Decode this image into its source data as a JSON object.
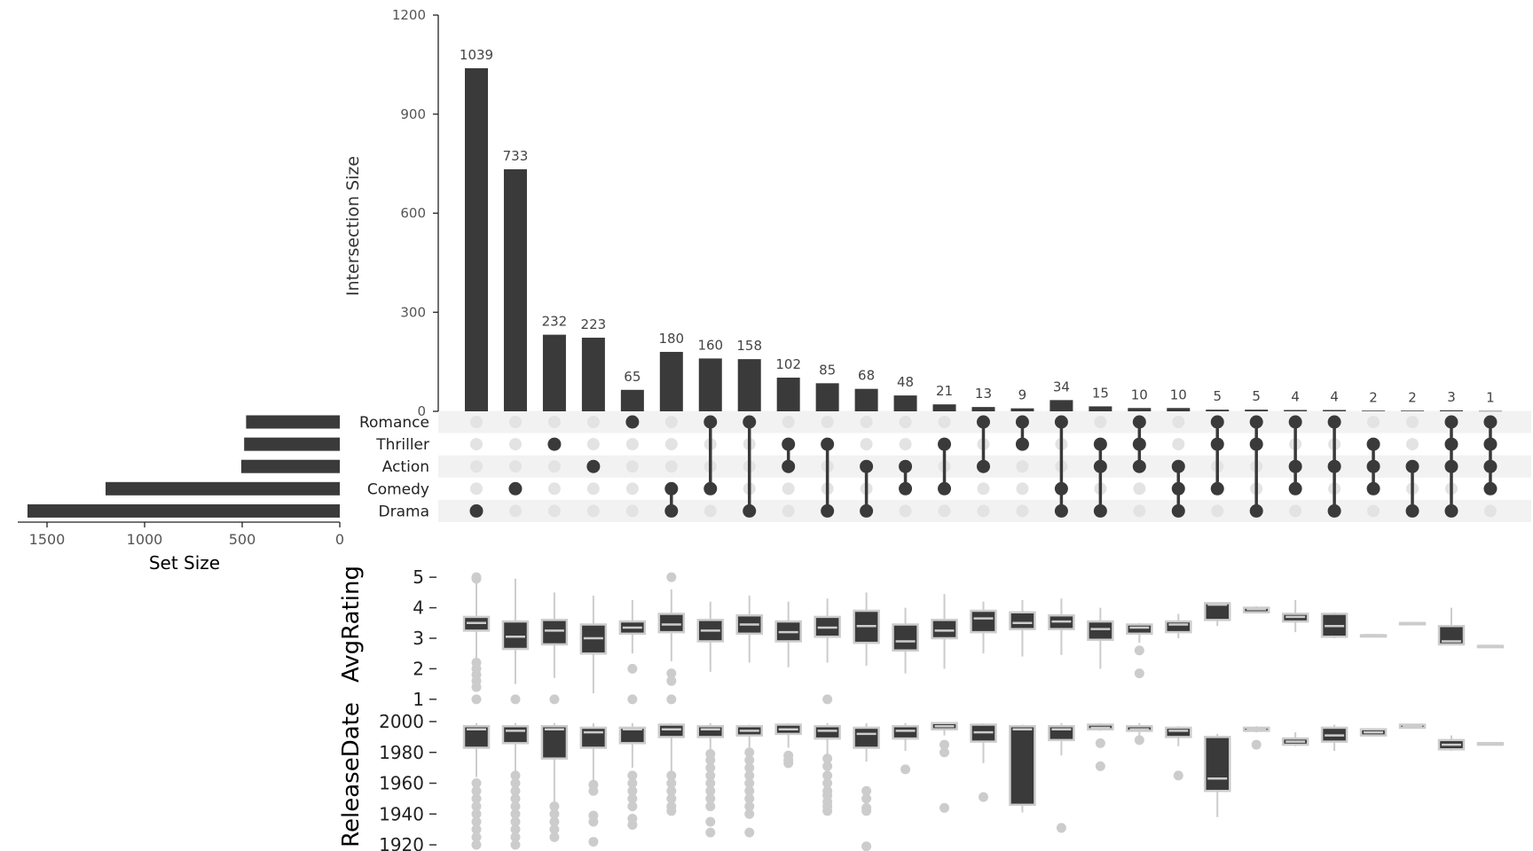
{
  "chart_data": {
    "type": "upset",
    "intersection_axis": {
      "label": "Intersection Size",
      "ticks": [
        0,
        300,
        600,
        900,
        1200
      ],
      "ylim": [
        0,
        1200
      ]
    },
    "set_size_axis": {
      "label": "Set Size",
      "ticks": [
        1500,
        1000,
        500,
        0
      ],
      "xlim": [
        0,
        1650
      ]
    },
    "sets": [
      {
        "name": "Romance",
        "size": 480
      },
      {
        "name": "Thriller",
        "size": 490
      },
      {
        "name": "Action",
        "size": 505
      },
      {
        "name": "Comedy",
        "size": 1200
      },
      {
        "name": "Drama",
        "size": 1600
      }
    ],
    "intersections": [
      {
        "size": 1039,
        "label": "1039",
        "sets": [
          "Drama"
        ]
      },
      {
        "size": 733,
        "label": "733",
        "sets": [
          "Comedy"
        ]
      },
      {
        "size": 232,
        "label": "232",
        "sets": [
          "Thriller"
        ]
      },
      {
        "size": 223,
        "label": "223",
        "sets": [
          "Action"
        ]
      },
      {
        "size": 65,
        "label": "65",
        "sets": [
          "Romance"
        ]
      },
      {
        "size": 180,
        "label": "180",
        "sets": [
          "Comedy",
          "Drama"
        ]
      },
      {
        "size": 160,
        "label": "160",
        "sets": [
          "Romance",
          "Comedy"
        ]
      },
      {
        "size": 158,
        "label": "158",
        "sets": [
          "Romance",
          "Drama"
        ]
      },
      {
        "size": 102,
        "label": "102",
        "sets": [
          "Thriller",
          "Action"
        ]
      },
      {
        "size": 85,
        "label": "85",
        "sets": [
          "Thriller",
          "Drama"
        ]
      },
      {
        "size": 68,
        "label": "68",
        "sets": [
          "Action",
          "Drama"
        ]
      },
      {
        "size": 48,
        "label": "48",
        "sets": [
          "Action",
          "Comedy"
        ]
      },
      {
        "size": 21,
        "label": "21",
        "sets": [
          "Thriller",
          "Comedy"
        ]
      },
      {
        "size": 13,
        "label": "13",
        "sets": [
          "Romance",
          "Action"
        ]
      },
      {
        "size": 9,
        "label": "9",
        "sets": [
          "Romance",
          "Thriller"
        ]
      },
      {
        "size": 34,
        "label": "34",
        "sets": [
          "Romance",
          "Comedy",
          "Drama"
        ]
      },
      {
        "size": 15,
        "label": "15",
        "sets": [
          "Thriller",
          "Action",
          "Drama"
        ]
      },
      {
        "size": 10,
        "label": "10",
        "sets": [
          "Romance",
          "Thriller",
          "Action"
        ]
      },
      {
        "size": 10,
        "label": "10",
        "sets": [
          "Action",
          "Comedy",
          "Drama"
        ]
      },
      {
        "size": 5,
        "label": "5",
        "sets": [
          "Romance",
          "Thriller",
          "Comedy"
        ]
      },
      {
        "size": 5,
        "label": "5",
        "sets": [
          "Romance",
          "Thriller",
          "Drama"
        ]
      },
      {
        "size": 4,
        "label": "4",
        "sets": [
          "Romance",
          "Action",
          "Comedy"
        ]
      },
      {
        "size": 4,
        "label": "4",
        "sets": [
          "Romance",
          "Action",
          "Drama"
        ]
      },
      {
        "size": 2,
        "label": "2",
        "sets": [
          "Thriller",
          "Action",
          "Comedy"
        ]
      },
      {
        "size": 2,
        "label": "2",
        "sets": [
          "Action",
          "Drama"
        ]
      },
      {
        "size": 3,
        "label": "3",
        "sets": [
          "Romance",
          "Thriller",
          "Action",
          "Drama"
        ]
      },
      {
        "size": 1,
        "label": "1",
        "sets": [
          "Romance",
          "Thriller",
          "Action",
          "Comedy"
        ]
      }
    ],
    "boxplots": [
      {
        "variable": "AvgRating",
        "ticks": [
          1,
          2,
          3,
          4,
          5
        ],
        "ylim": [
          0.85,
          5.15
        ],
        "stats": [
          {
            "wlo": 2.35,
            "q1": 3.25,
            "med": 3.5,
            "q3": 3.7,
            "whi": 4.9,
            "out": [
              1,
              1.4,
              1.6,
              1.8,
              2,
              2.2,
              4.95,
              5
            ]
          },
          {
            "wlo": 1.5,
            "q1": 2.65,
            "med": 3.05,
            "q3": 3.55,
            "whi": 4.95,
            "out": [
              1
            ]
          },
          {
            "wlo": 1.7,
            "q1": 2.8,
            "med": 3.25,
            "q3": 3.6,
            "whi": 4.5,
            "out": [
              1
            ]
          },
          {
            "wlo": 1.2,
            "q1": 2.5,
            "med": 3,
            "q3": 3.45,
            "whi": 4.4,
            "out": []
          },
          {
            "wlo": 2.5,
            "q1": 3.15,
            "med": 3.35,
            "q3": 3.55,
            "whi": 4.25,
            "out": [
              1,
              2
            ]
          },
          {
            "wlo": 2.25,
            "q1": 3.2,
            "med": 3.45,
            "q3": 3.8,
            "whi": 4.6,
            "out": [
              1,
              1.6,
              1.85,
              5
            ]
          },
          {
            "wlo": 1.9,
            "q1": 2.9,
            "med": 3.25,
            "q3": 3.6,
            "whi": 4.2,
            "out": []
          },
          {
            "wlo": 2.2,
            "q1": 3.15,
            "med": 3.45,
            "q3": 3.75,
            "whi": 4.4,
            "out": []
          },
          {
            "wlo": 2.05,
            "q1": 2.9,
            "med": 3.2,
            "q3": 3.55,
            "whi": 4.2,
            "out": []
          },
          {
            "wlo": 2.2,
            "q1": 3.05,
            "med": 3.35,
            "q3": 3.7,
            "whi": 4.3,
            "out": [
              1
            ]
          },
          {
            "wlo": 2.1,
            "q1": 2.85,
            "med": 3.4,
            "q3": 3.9,
            "whi": 4.5,
            "out": []
          },
          {
            "wlo": 1.85,
            "q1": 2.6,
            "med": 2.9,
            "q3": 3.45,
            "whi": 4,
            "out": []
          },
          {
            "wlo": 2,
            "q1": 3,
            "med": 3.25,
            "q3": 3.6,
            "whi": 4.45,
            "out": []
          },
          {
            "wlo": 2.5,
            "q1": 3.2,
            "med": 3.65,
            "q3": 3.9,
            "whi": 4.2,
            "out": []
          },
          {
            "wlo": 2.4,
            "q1": 3.3,
            "med": 3.5,
            "q3": 3.85,
            "whi": 4.25,
            "out": []
          },
          {
            "wlo": 2.45,
            "q1": 3.3,
            "med": 3.55,
            "q3": 3.75,
            "whi": 4.3,
            "out": []
          },
          {
            "wlo": 2,
            "q1": 2.95,
            "med": 3.3,
            "q3": 3.55,
            "whi": 4,
            "out": []
          },
          {
            "wlo": 2.85,
            "q1": 3.15,
            "med": 3.35,
            "q3": 3.45,
            "whi": 3.5,
            "out": [
              1.85,
              2.6
            ]
          },
          {
            "wlo": 3,
            "q1": 3.2,
            "med": 3.45,
            "q3": 3.55,
            "whi": 3.8,
            "out": []
          },
          {
            "wlo": 3.4,
            "q1": 3.6,
            "med": 4.1,
            "q3": 4.15,
            "whi": 4.15,
            "out": []
          },
          {
            "wlo": 3.85,
            "q1": 3.85,
            "med": 3.95,
            "q3": 4,
            "whi": 4.05,
            "out": []
          },
          {
            "wlo": 3.2,
            "q1": 3.55,
            "med": 3.7,
            "q3": 3.8,
            "whi": 4.25,
            "out": []
          },
          {
            "wlo": 3,
            "q1": 3.05,
            "med": 3.4,
            "q3": 3.8,
            "whi": 3.85,
            "out": []
          },
          {
            "wlo": 3.1,
            "q1": 3.1,
            "med": 3.1,
            "q3": 3.1,
            "whi": 3.1,
            "out": []
          },
          {
            "wlo": 3.5,
            "q1": 3.5,
            "med": 3.5,
            "q3": 3.5,
            "whi": 3.5,
            "out": []
          },
          {
            "wlo": 2.8,
            "q1": 2.8,
            "med": 2.9,
            "q3": 3.4,
            "whi": 4,
            "out": []
          },
          {
            "wlo": 2.75,
            "q1": 2.75,
            "med": 2.75,
            "q3": 2.75,
            "whi": 2.75,
            "out": []
          }
        ]
      },
      {
        "variable": "ReleaseDate",
        "ticks": [
          1920,
          1940,
          1960,
          1980,
          2000
        ],
        "ylim": [
          1916,
          2000
        ],
        "stats": [
          {
            "wlo": 1964,
            "q1": 1983,
            "med": 1995,
            "q3": 1997,
            "whi": 1999,
            "out": [
              1920,
              1925,
              1930,
              1935,
              1940,
              1945,
              1950,
              1955,
              1960
            ]
          },
          {
            "wlo": 1966,
            "q1": 1986,
            "med": 1994,
            "q3": 1997,
            "whi": 1999,
            "out": [
              1920,
              1925,
              1930,
              1935,
              1940,
              1945,
              1950,
              1955,
              1960,
              1965
            ]
          },
          {
            "wlo": 1946,
            "q1": 1976,
            "med": 1995,
            "q3": 1997,
            "whi": 1999,
            "out": [
              1925,
              1930,
              1935,
              1940,
              1945
            ]
          },
          {
            "wlo": 1962,
            "q1": 1983,
            "med": 1993,
            "q3": 1996,
            "whi": 1999,
            "out": [
              1922,
              1935,
              1939,
              1955,
              1959
            ]
          },
          {
            "wlo": 1970,
            "q1": 1986,
            "med": 1995,
            "q3": 1996,
            "whi": 1999,
            "out": [
              1933,
              1937,
              1945,
              1950,
              1955,
              1960,
              1965
            ]
          },
          {
            "wlo": 1968,
            "q1": 1990,
            "med": 1995,
            "q3": 1998,
            "whi": 1999,
            "out": [
              1942,
              1945,
              1950,
              1955,
              1960,
              1965
            ]
          },
          {
            "wlo": 1981,
            "q1": 1990,
            "med": 1995,
            "q3": 1997,
            "whi": 1999,
            "out": [
              1928,
              1935,
              1945,
              1950,
              1955,
              1960,
              1965,
              1970,
              1975,
              1979
            ]
          },
          {
            "wlo": 1982,
            "q1": 1991,
            "med": 1994,
            "q3": 1997,
            "whi": 1998,
            "out": [
              1928,
              1940,
              1945,
              1950,
              1955,
              1960,
              1965,
              1970,
              1975,
              1980
            ]
          },
          {
            "wlo": 1983,
            "q1": 1992,
            "med": 1995,
            "q3": 1998,
            "whi": 1999,
            "out": [
              1973,
              1975,
              1978
            ]
          },
          {
            "wlo": 1978,
            "q1": 1989,
            "med": 1994,
            "q3": 1997,
            "whi": 1999,
            "out": [
              1942,
              1945,
              1948,
              1952,
              1955,
              1960,
              1965,
              1971,
              1976
            ]
          },
          {
            "wlo": 1974,
            "q1": 1983,
            "med": 1992,
            "q3": 1996,
            "whi": 1999,
            "out": [
              1919,
              1942,
              1944,
              1950,
              1955
            ]
          },
          {
            "wlo": 1981,
            "q1": 1989,
            "med": 1994,
            "q3": 1997,
            "whi": 1999,
            "out": [
              1969
            ]
          },
          {
            "wlo": 1991,
            "q1": 1995,
            "med": 1997,
            "q3": 1999,
            "whi": 1999,
            "out": [
              1944,
              1980,
              1985
            ]
          },
          {
            "wlo": 1973,
            "q1": 1987,
            "med": 1993,
            "q3": 1998,
            "whi": 1999,
            "out": [
              1951
            ]
          },
          {
            "wlo": 1941,
            "q1": 1946,
            "med": 1995,
            "q3": 1997,
            "whi": 1998,
            "out": []
          },
          {
            "wlo": 1978,
            "q1": 1988,
            "med": 1995,
            "q3": 1997,
            "whi": 1999,
            "out": [
              1931
            ]
          },
          {
            "wlo": 1994,
            "q1": 1995,
            "med": 1996,
            "q3": 1998,
            "whi": 1999,
            "out": [
              1971,
              1986
            ]
          },
          {
            "wlo": 1991,
            "q1": 1994,
            "med": 1995,
            "q3": 1997,
            "whi": 1999,
            "out": [
              1988
            ]
          },
          {
            "wlo": 1984,
            "q1": 1990,
            "med": 1994,
            "q3": 1996,
            "whi": 1997,
            "out": [
              1965
            ]
          },
          {
            "wlo": 1938,
            "q1": 1955,
            "med": 1963,
            "q3": 1990,
            "whi": 1992,
            "out": []
          },
          {
            "wlo": 1993,
            "q1": 1994,
            "med": 1995,
            "q3": 1996,
            "whi": 1997,
            "out": [
              1985
            ]
          },
          {
            "wlo": 1984,
            "q1": 1985,
            "med": 1987,
            "q3": 1989,
            "whi": 1993,
            "out": []
          },
          {
            "wlo": 1981,
            "q1": 1987,
            "med": 1991,
            "q3": 1996,
            "whi": 1998,
            "out": []
          },
          {
            "wlo": 1991,
            "q1": 1991,
            "med": 1993,
            "q3": 1995,
            "whi": 1995,
            "out": []
          },
          {
            "wlo": 1996,
            "q1": 1996,
            "med": 1997,
            "q3": 1998,
            "whi": 1998,
            "out": []
          },
          {
            "wlo": 1981,
            "q1": 1982,
            "med": 1985,
            "q3": 1988,
            "whi": 1991,
            "out": []
          },
          {
            "wlo": 1985,
            "q1": 1985,
            "med": 1986,
            "q3": 1986,
            "whi": 1986,
            "out": []
          }
        ]
      }
    ]
  }
}
